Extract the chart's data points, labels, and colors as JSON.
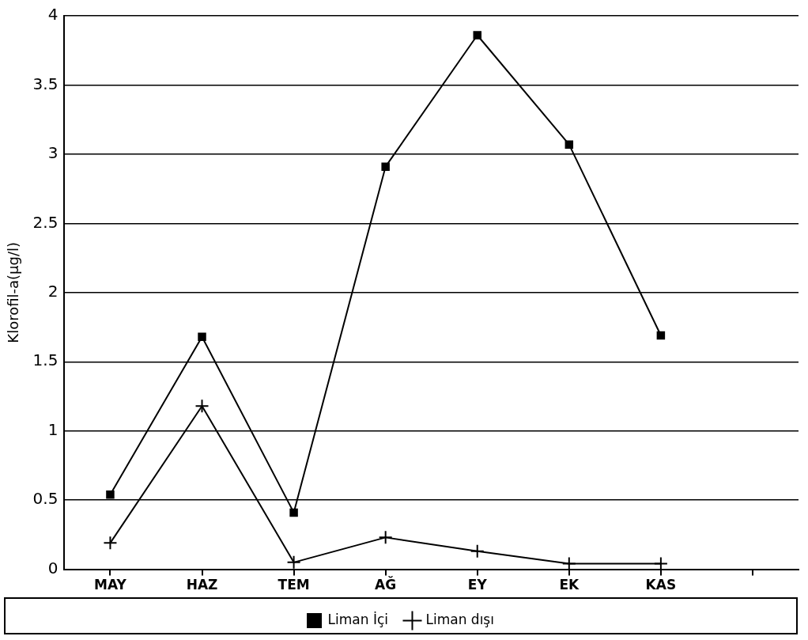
{
  "chart_data": {
    "type": "line",
    "ylabel": "Klorofil-a(µg/l)",
    "categories": [
      "MAY",
      "HAZ",
      "TEM",
      "AĞ",
      "EY",
      "EK",
      "KAS",
      null
    ],
    "series": [
      {
        "name": "Liman İçi",
        "color": "#000000",
        "marker": "square",
        "values": [
          0.54,
          1.68,
          0.41,
          2.91,
          3.86,
          3.07,
          1.69,
          null
        ]
      },
      {
        "name": "Liman dışı",
        "color": "#000000",
        "marker": "cross",
        "values": [
          0.19,
          1.18,
          0.05,
          0.23,
          0.13,
          0.04,
          0.04,
          null
        ]
      }
    ],
    "ylim": [
      0,
      4
    ],
    "yticks": [
      0,
      0.5,
      1,
      1.5,
      2,
      2.5,
      3,
      3.5,
      4
    ],
    "grid": "y",
    "legend": "bottom",
    "line_style": "solid"
  }
}
